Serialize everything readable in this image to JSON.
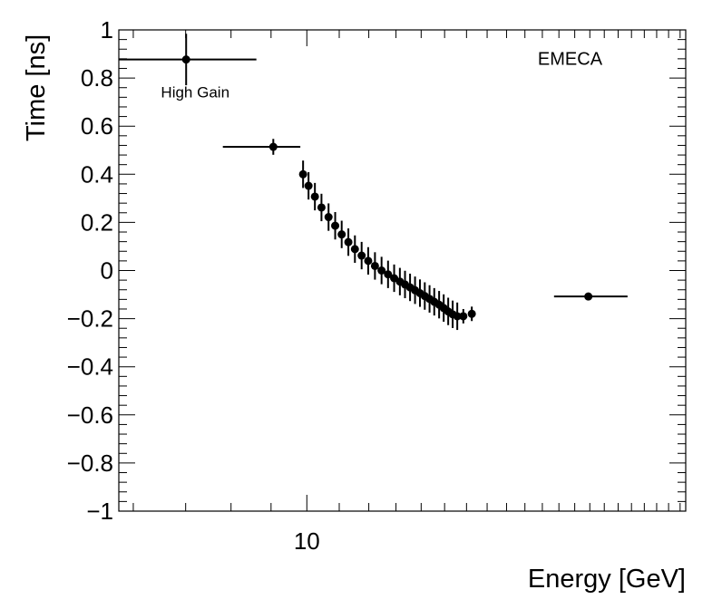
{
  "chart_data": {
    "type": "scatter",
    "title": "",
    "xlabel": "Energy [GeV]",
    "ylabel": "Time [ns]",
    "xscale": "log",
    "xlim": [
      5.75,
      30.5
    ],
    "ylim": [
      -1,
      1
    ],
    "grid": false,
    "x_tick_labels": [
      {
        "value": 10,
        "label": "10"
      }
    ],
    "y_tick_labels": [
      {
        "value": 1,
        "label": "1"
      },
      {
        "value": 0.8,
        "label": "0.8"
      },
      {
        "value": 0.6,
        "label": "0.6"
      },
      {
        "value": 0.4,
        "label": "0.4"
      },
      {
        "value": 0.2,
        "label": "0.2"
      },
      {
        "value": 0,
        "label": "0"
      },
      {
        "value": -0.2,
        "label": "−0.2"
      },
      {
        "value": -0.4,
        "label": "−0.4"
      },
      {
        "value": -0.6,
        "label": "−0.6"
      },
      {
        "value": -0.8,
        "label": "−0.8"
      },
      {
        "value": -1,
        "label": "−1"
      }
    ],
    "annotations": [
      {
        "text": "EMECA",
        "x": 21.7,
        "y": 0.855
      },
      {
        "text": "High Gain",
        "x": 7.2,
        "y": 0.72
      }
    ],
    "series": [
      {
        "name": "High Gain",
        "color": "#000000",
        "points": [
          {
            "x": 7.01,
            "xlo": 5.75,
            "xhi": 8.62,
            "y": 0.877,
            "yerr": 0.107
          },
          {
            "x": 9.06,
            "xlo": 7.81,
            "xhi": 9.81,
            "y": 0.514,
            "yerr": 0.033
          },
          {
            "x": 9.89,
            "y": 0.4,
            "yerr": 0.057
          },
          {
            "x": 10.05,
            "y": 0.352,
            "yerr": 0.057
          },
          {
            "x": 10.24,
            "y": 0.307,
            "yerr": 0.057
          },
          {
            "x": 10.44,
            "y": 0.262,
            "yerr": 0.057
          },
          {
            "x": 10.66,
            "y": 0.222,
            "yerr": 0.057
          },
          {
            "x": 10.87,
            "y": 0.186,
            "yerr": 0.057
          },
          {
            "x": 11.08,
            "y": 0.15,
            "yerr": 0.057
          },
          {
            "x": 11.3,
            "y": 0.118,
            "yerr": 0.057
          },
          {
            "x": 11.52,
            "y": 0.089,
            "yerr": 0.057
          },
          {
            "x": 11.75,
            "y": 0.062,
            "yerr": 0.057
          },
          {
            "x": 11.98,
            "y": 0.04,
            "yerr": 0.057
          },
          {
            "x": 12.22,
            "y": 0.019,
            "yerr": 0.057
          },
          {
            "x": 12.46,
            "y": 0.0,
            "yerr": 0.057
          },
          {
            "x": 12.7,
            "y": -0.016,
            "yerr": 0.057
          },
          {
            "x": 12.93,
            "y": -0.032,
            "yerr": 0.057
          },
          {
            "x": 13.15,
            "y": -0.046,
            "yerr": 0.057
          },
          {
            "x": 13.35,
            "y": -0.058,
            "yerr": 0.057
          },
          {
            "x": 13.55,
            "y": -0.07,
            "yerr": 0.057
          },
          {
            "x": 13.75,
            "y": -0.082,
            "yerr": 0.057
          },
          {
            "x": 13.95,
            "y": -0.094,
            "yerr": 0.057
          },
          {
            "x": 14.15,
            "y": -0.106,
            "yerr": 0.057
          },
          {
            "x": 14.35,
            "y": -0.118,
            "yerr": 0.057
          },
          {
            "x": 14.55,
            "y": -0.13,
            "yerr": 0.057
          },
          {
            "x": 14.76,
            "y": -0.142,
            "yerr": 0.057
          },
          {
            "x": 14.96,
            "y": -0.156,
            "yerr": 0.057
          },
          {
            "x": 15.16,
            "y": -0.17,
            "yerr": 0.057
          },
          {
            "x": 15.36,
            "y": -0.182,
            "yerr": 0.057
          },
          {
            "x": 15.57,
            "y": -0.19,
            "yerr": 0.057
          },
          {
            "x": 15.85,
            "y": -0.19,
            "yerr": 0.03
          },
          {
            "x": 16.25,
            "y": -0.18,
            "yerr": 0.03
          },
          {
            "x": 22.9,
            "xlo": 20.7,
            "xhi": 25.7,
            "y": -0.108,
            "yerr": 0.0
          }
        ]
      }
    ]
  }
}
